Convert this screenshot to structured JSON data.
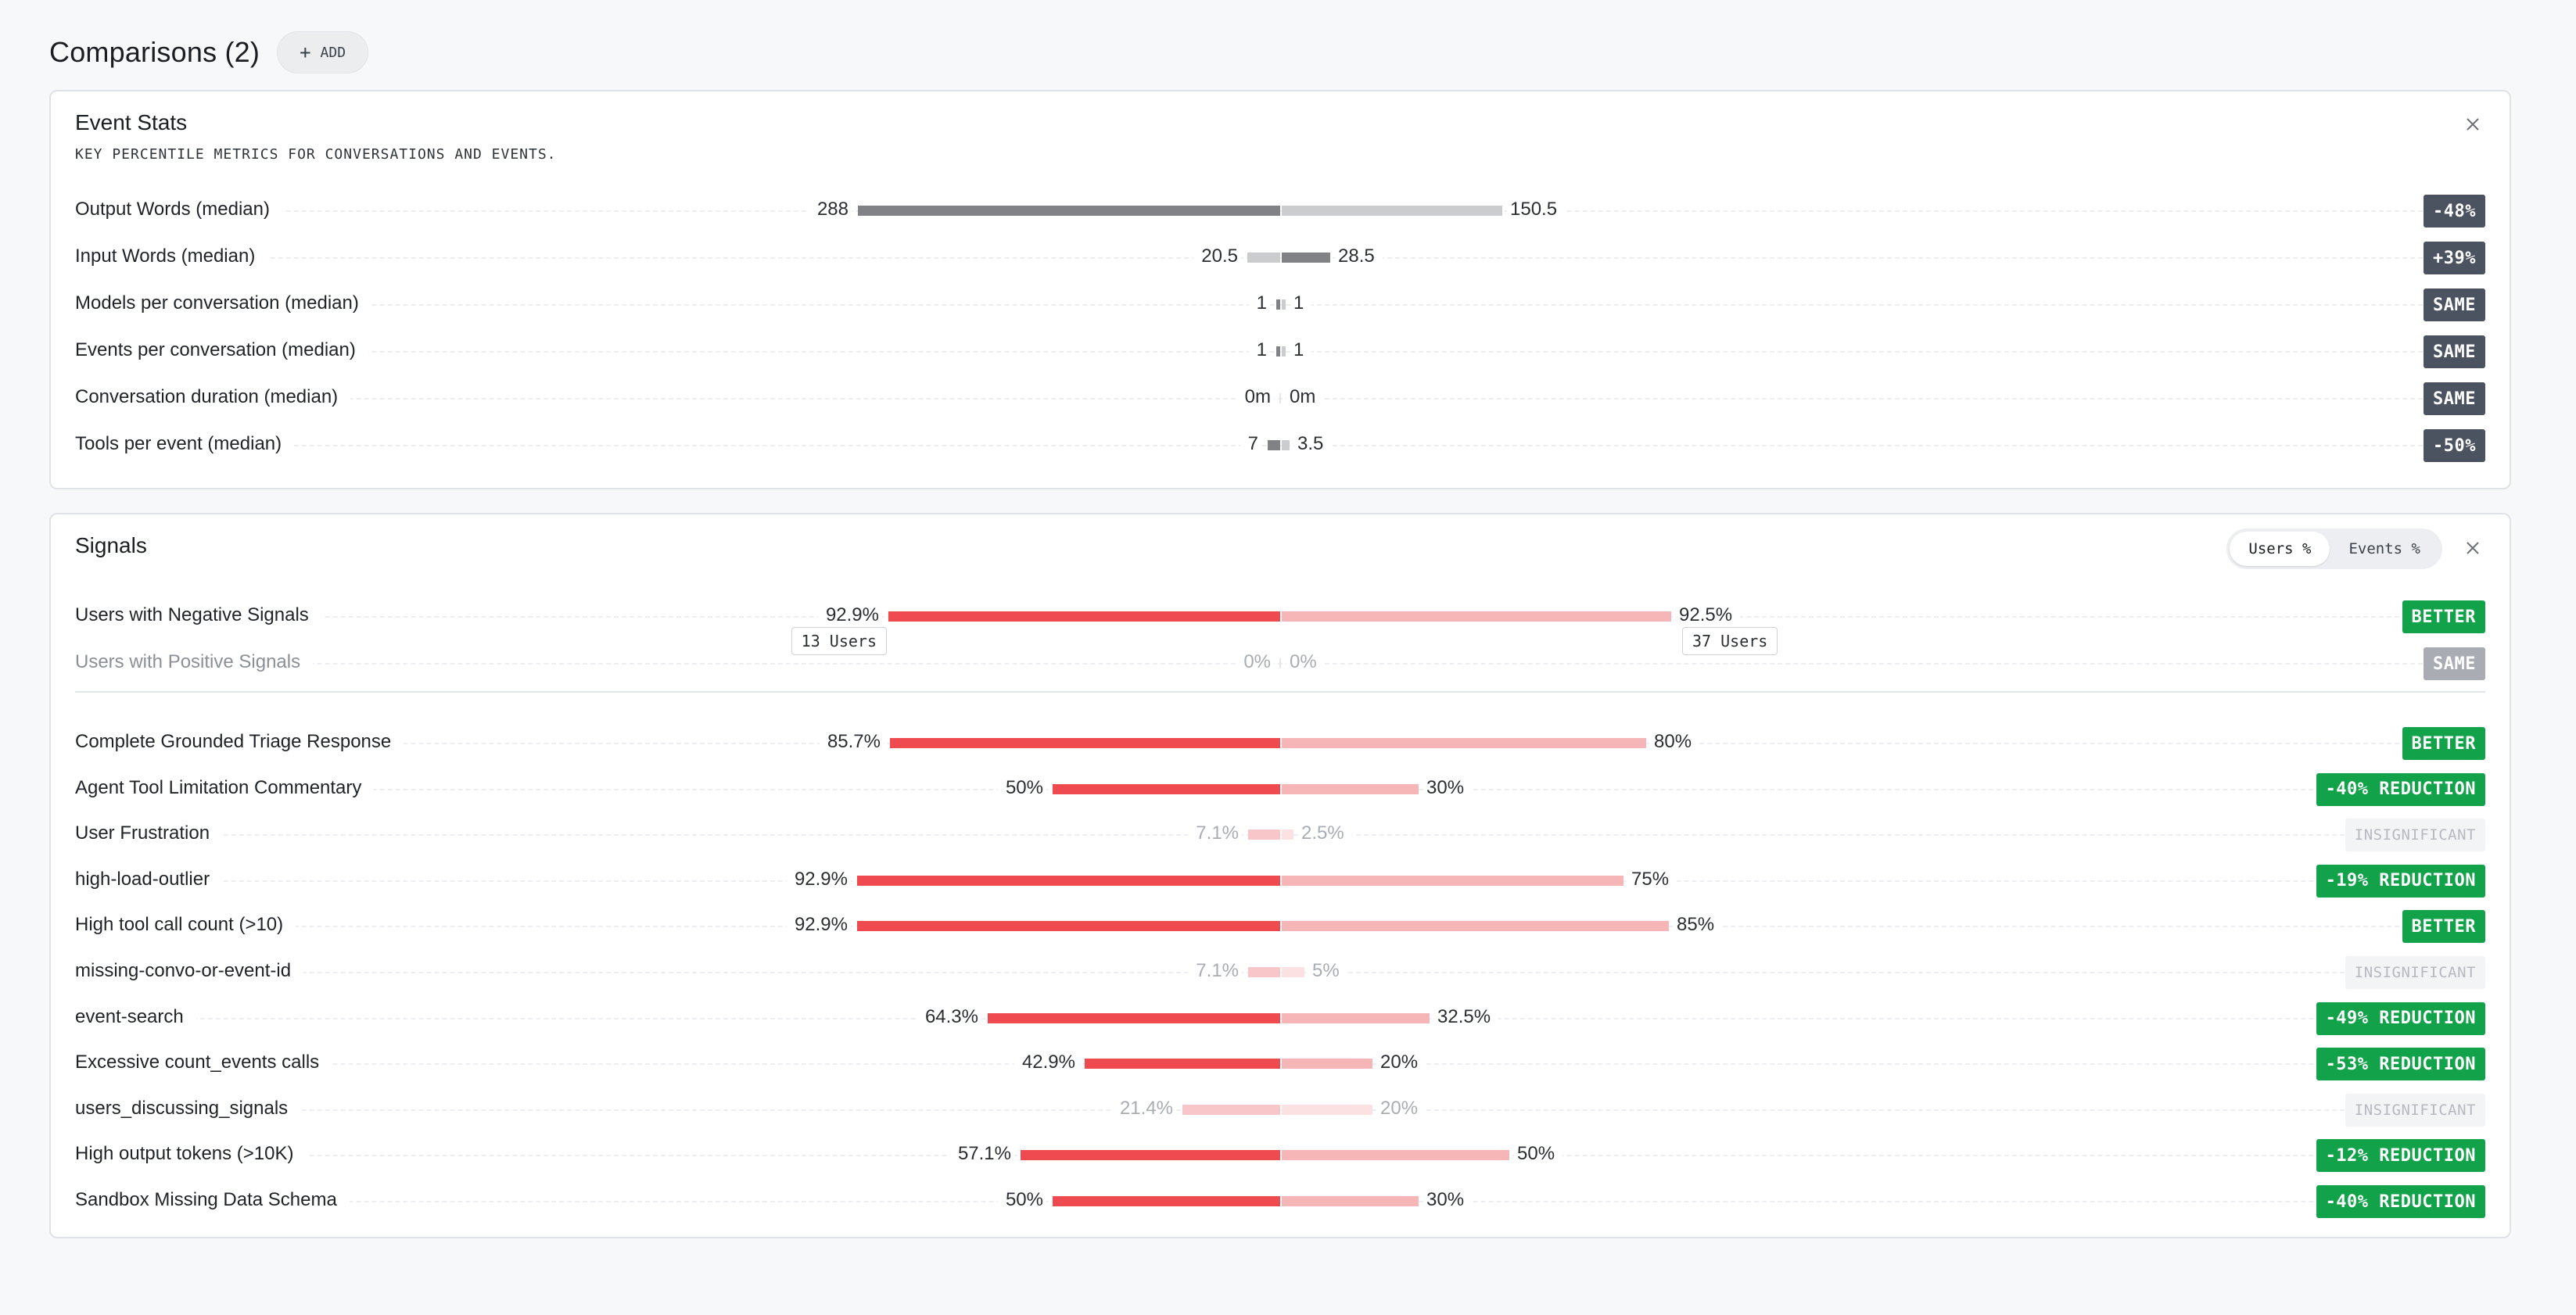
{
  "header": {
    "title": "Comparisons (2)",
    "add_label": "ADD"
  },
  "colors": {
    "dark_bar": "#808286",
    "light_bar": "#cbccce",
    "red_bar": "#ef4a4f",
    "pink_bar": "#f6b5b7",
    "faint_red": "#f8c6c8",
    "faint_pink": "#fbe1e2",
    "badge_green": "#12a24a",
    "badge_dark": "#4b5260"
  },
  "event_stats": {
    "title": "Event Stats",
    "subtitle": "KEY PERCENTILE METRICS FOR CONVERSATIONS AND EVENTS.",
    "rows": [
      {
        "label": "Output Words (median)",
        "left": "288",
        "right": "150.5",
        "left_value": 288,
        "right_value": 150.5,
        "badge": "-48%"
      },
      {
        "label": "Input Words (median)",
        "left": "20.5",
        "right": "28.5",
        "left_value": 20.5,
        "right_value": 28.5,
        "badge": "+39%"
      },
      {
        "label": "Models per conversation (median)",
        "left": "1",
        "right": "1",
        "left_value": 1,
        "right_value": 1,
        "badge": "SAME"
      },
      {
        "label": "Events per conversation (median)",
        "left": "1",
        "right": "1",
        "left_value": 1,
        "right_value": 1,
        "badge": "SAME"
      },
      {
        "label": "Conversation duration (median)",
        "left": "0m",
        "right": "0m",
        "left_value": 0,
        "right_value": 0,
        "badge": "SAME"
      },
      {
        "label": "Tools per event (median)",
        "left": "7",
        "right": "3.5",
        "left_value": 7,
        "right_value": 3.5,
        "badge": "-50%"
      }
    ]
  },
  "signals": {
    "title": "Signals",
    "toggle": [
      "Users %",
      "Events %"
    ],
    "summary_rows": [
      {
        "label": "Users with Negative Signals",
        "left": "92.9%",
        "right": "92.5%",
        "left_pct": 92.9,
        "right_pct": 92.5,
        "badge": "BETTER",
        "left_users": "13 Users",
        "right_users": "37 Users"
      },
      {
        "label": "Users with Positive Signals",
        "left": "0%",
        "right": "0%",
        "left_pct": 0,
        "right_pct": 0,
        "badge": "SAME"
      }
    ],
    "rows": [
      {
        "label": "Complete Grounded Triage Response",
        "left": "85.7%",
        "right": "80%",
        "left_pct": 85.7,
        "right_pct": 80,
        "badge": "BETTER"
      },
      {
        "label": "Agent Tool Limitation Commentary",
        "left": "50%",
        "right": "30%",
        "left_pct": 50,
        "right_pct": 30,
        "badge": "-40% REDUCTION"
      },
      {
        "label": "User Frustration",
        "left": "7.1%",
        "right": "2.5%",
        "left_pct": 7.1,
        "right_pct": 2.5,
        "badge": "INSIGNIFICANT"
      },
      {
        "label": "high-load-outlier",
        "left": "92.9%",
        "right": "75%",
        "left_pct": 92.9,
        "right_pct": 75,
        "badge": "-19% REDUCTION"
      },
      {
        "label": "High tool call count (>10)",
        "left": "92.9%",
        "right": "85%",
        "left_pct": 92.9,
        "right_pct": 85,
        "badge": "BETTER"
      },
      {
        "label": "missing-convo-or-event-id",
        "left": "7.1%",
        "right": "5%",
        "left_pct": 7.1,
        "right_pct": 5,
        "badge": "INSIGNIFICANT"
      },
      {
        "label": "event-search",
        "left": "64.3%",
        "right": "32.5%",
        "left_pct": 64.3,
        "right_pct": 32.5,
        "badge": "-49% REDUCTION"
      },
      {
        "label": "Excessive count_events calls",
        "left": "42.9%",
        "right": "20%",
        "left_pct": 42.9,
        "right_pct": 20,
        "badge": "-53% REDUCTION"
      },
      {
        "label": "users_discussing_signals",
        "left": "21.4%",
        "right": "20%",
        "left_pct": 21.4,
        "right_pct": 20,
        "badge": "INSIGNIFICANT"
      },
      {
        "label": "High output tokens (>10K)",
        "left": "57.1%",
        "right": "50%",
        "left_pct": 57.1,
        "right_pct": 50,
        "badge": "-12% REDUCTION"
      },
      {
        "label": "Sandbox Missing Data Schema",
        "left": "50%",
        "right": "30%",
        "left_pct": 50,
        "right_pct": 30,
        "badge": "-40% REDUCTION"
      }
    ]
  }
}
